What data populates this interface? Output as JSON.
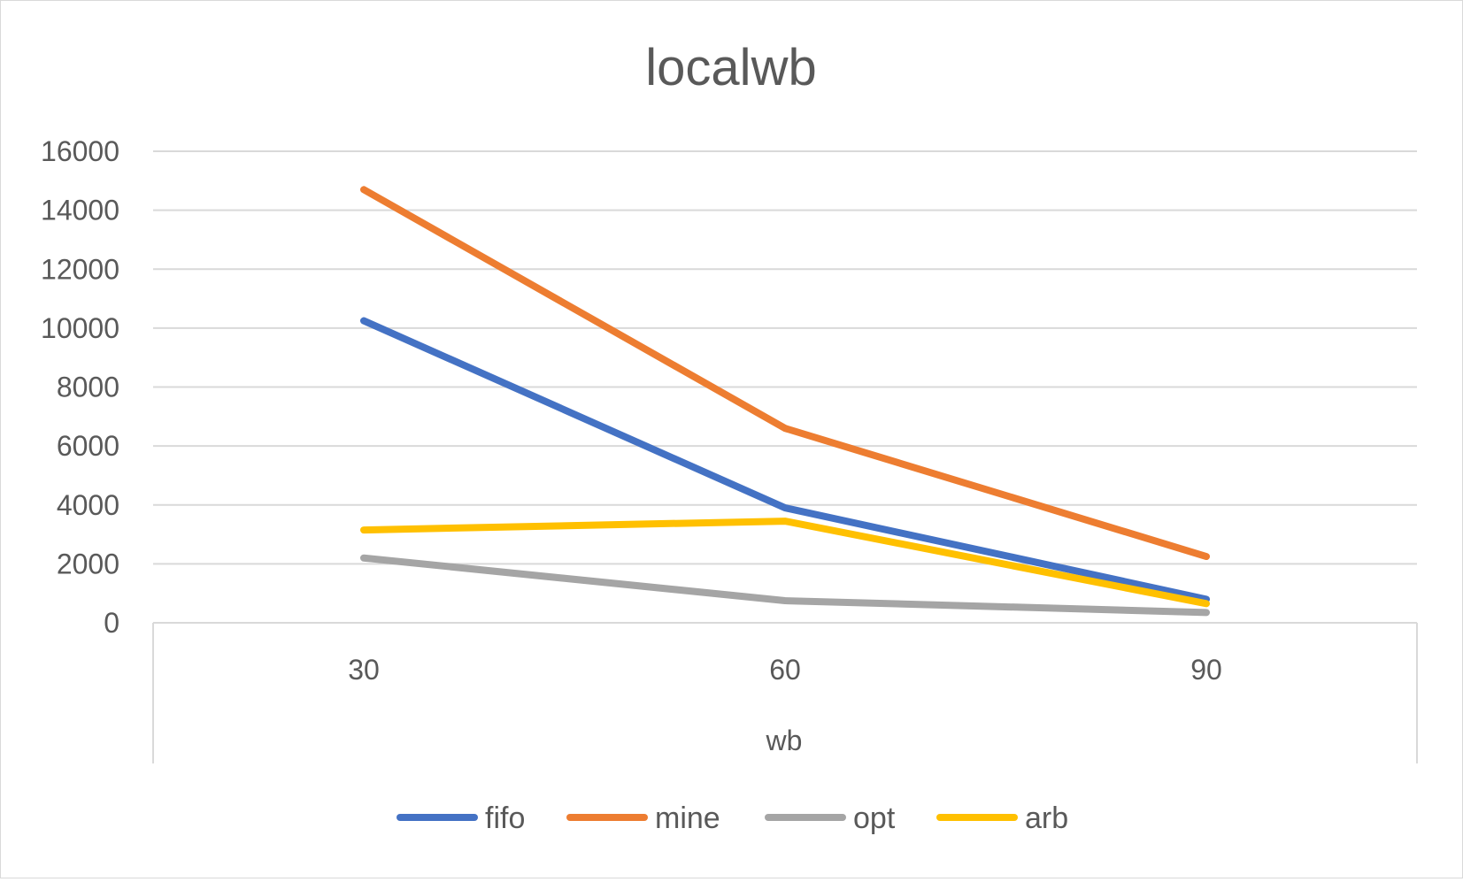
{
  "chart_data": {
    "type": "line",
    "title": "localwb",
    "xlabel": "wb",
    "ylabel": "",
    "categories": [
      "30",
      "60",
      "90"
    ],
    "ylim": [
      0,
      16000
    ],
    "yticks": [
      0,
      2000,
      4000,
      6000,
      8000,
      10000,
      12000,
      14000,
      16000
    ],
    "grid": true,
    "legend_position": "bottom",
    "series": [
      {
        "name": "fifo",
        "color": "#4472C4",
        "values": [
          10250,
          3900,
          800
        ]
      },
      {
        "name": "mine",
        "color": "#ED7D31",
        "values": [
          14700,
          6600,
          2250
        ]
      },
      {
        "name": "opt",
        "color": "#A5A5A5",
        "values": [
          2200,
          750,
          350
        ]
      },
      {
        "name": "arb",
        "color": "#FFC000",
        "values": [
          3150,
          3450,
          650
        ]
      }
    ]
  }
}
